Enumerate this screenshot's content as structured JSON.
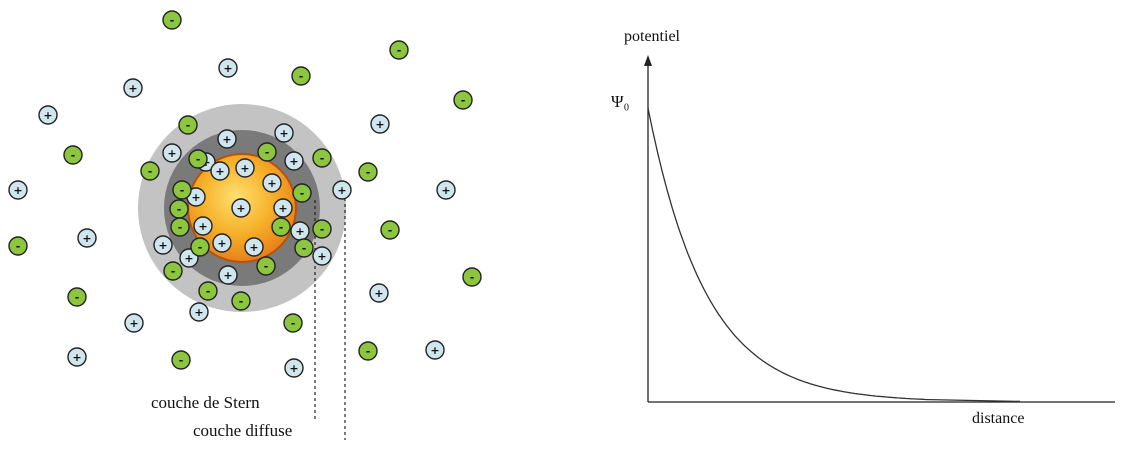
{
  "diagram": {
    "labels": {
      "stern": "couche de Stern",
      "diffuse": "couche diffuse"
    },
    "ion_symbols": {
      "positive": "+",
      "negative": "-"
    },
    "colors": {
      "positive_fill": "#cfe6ee",
      "negative_fill": "#8cc63f",
      "core_inner": "#ffd24a",
      "core_outer": "#e8801a",
      "core_stroke": "#b8520b",
      "stern_layer": "#7a7a7a",
      "diffuse_layer": "#c3c3c3"
    }
  },
  "chart_data": {
    "type": "line",
    "title": "",
    "xlabel": "distance",
    "ylabel": "potentiel",
    "y0_label": "Ψ₀",
    "curve": "exponential decay",
    "x": [
      0,
      1,
      2,
      3,
      4,
      5,
      6
    ],
    "y": [
      1.0,
      0.45,
      0.2,
      0.09,
      0.04,
      0.018,
      0.008
    ],
    "line_color": "#333333"
  }
}
